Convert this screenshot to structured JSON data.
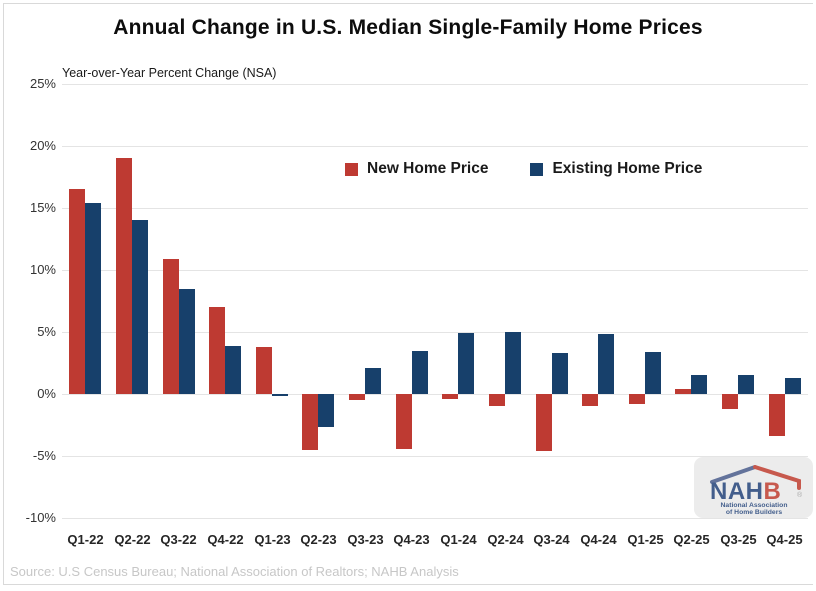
{
  "title": "Annual Change in U.S. Median Single-Family Home Prices",
  "subtitle": "Year-over-Year Percent Change (NSA)",
  "source": "Source: U.S Census Bureau; National Association of Realtors; NAHB Analysis",
  "legend": {
    "items": [
      {
        "label": "New Home Price",
        "color": "#be3a32"
      },
      {
        "label": "Existing Home Price",
        "color": "#17406b"
      }
    ]
  },
  "logo": {
    "name_part_blue": "NAH",
    "name_part_red": "B",
    "registered_mark": "®",
    "subtext_line1": "National Association",
    "subtext_line2": "of Home Builders",
    "blue": "#1f4077",
    "red": "#c0392b"
  },
  "colors": {
    "new_home_bar": "#be3a32",
    "existing_home_bar": "#17406b",
    "gridline": "#e4e4e4",
    "axis_text": "#333333",
    "source_text": "#c7c7c7"
  },
  "chart_data": {
    "type": "bar",
    "title": "Annual Change in U.S. Median Single-Family Home Prices",
    "subtitle": "Year-over-Year Percent Change (NSA)",
    "xlabel": "",
    "ylabel": "Year-over-Year Percent Change (NSA)",
    "categories": [
      "Q1-22",
      "Q2-22",
      "Q3-22",
      "Q4-22",
      "Q1-23",
      "Q2-23",
      "Q3-23",
      "Q4-23",
      "Q1-24",
      "Q2-24",
      "Q3-24",
      "Q4-24",
      "Q1-25",
      "Q2-25",
      "Q3-25",
      "Q4-25"
    ],
    "series": [
      {
        "name": "New Home Price",
        "color": "#be3a32",
        "values": [
          16.5,
          19.0,
          10.9,
          7.0,
          3.8,
          -4.5,
          -0.5,
          -4.4,
          -0.4,
          -1.0,
          -4.6,
          -1.0,
          -0.8,
          0.4,
          -1.2,
          -3.4
        ]
      },
      {
        "name": "Existing Home Price",
        "color": "#17406b",
        "values": [
          15.4,
          14.0,
          8.5,
          3.9,
          -0.2,
          -2.7,
          2.1,
          3.5,
          4.9,
          5.0,
          3.3,
          4.8,
          3.4,
          1.5,
          1.5,
          1.3
        ]
      }
    ],
    "yticks": [
      25,
      20,
      15,
      10,
      5,
      0,
      -5,
      -10
    ],
    "ytick_format": "{v}%",
    "ylim": [
      -10,
      25
    ],
    "grid": true,
    "legend_position": "top-center-inside"
  }
}
